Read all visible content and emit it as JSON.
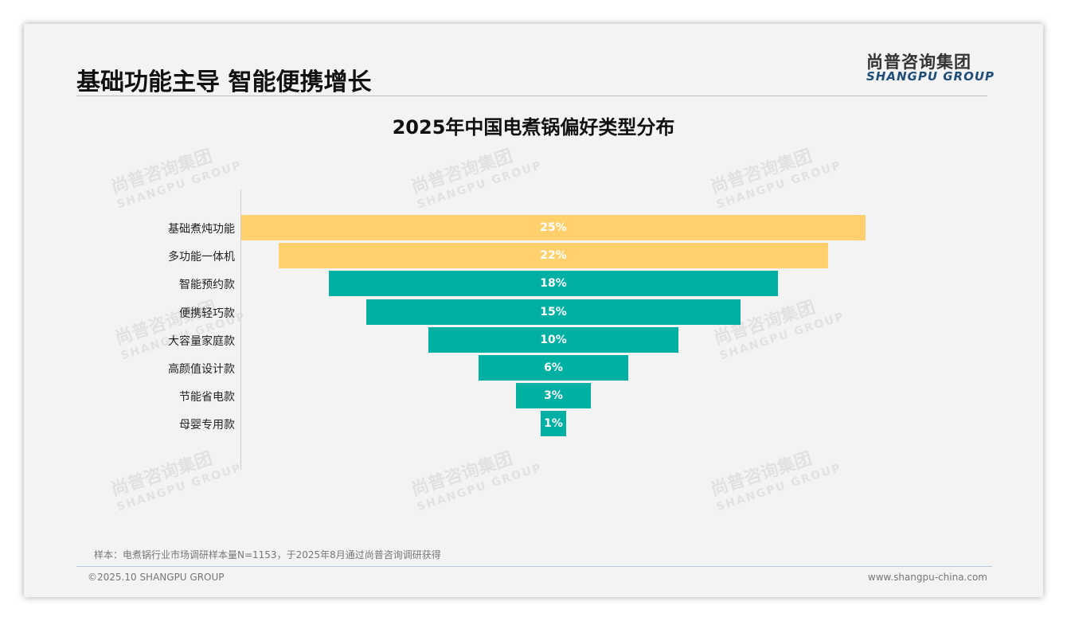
{
  "header": {
    "title": "基础功能主导 智能便携增长",
    "logo_cn": "尚普咨询集团",
    "logo_en": "SHANGPU GROUP"
  },
  "chart_data": {
    "type": "bar",
    "subtype": "funnel",
    "title": "2025年中国电煮锅偏好类型分布",
    "categories": [
      "基础煮炖功能",
      "多功能一体机",
      "智能预约款",
      "便携轻巧款",
      "大容量家庭款",
      "高颜值设计款",
      "节能省电款",
      "母婴专用款"
    ],
    "values": [
      25,
      22,
      18,
      15,
      10,
      6,
      3,
      1
    ],
    "labels": [
      "25%",
      "22%",
      "18%",
      "15%",
      "10%",
      "6%",
      "3%",
      "1%"
    ],
    "colors": [
      "#FFD06B",
      "#FFD06B",
      "#00B0A3",
      "#00B0A3",
      "#00B0A3",
      "#00B0A3",
      "#00B0A3",
      "#00B0A3"
    ],
    "xlim": [
      0,
      25
    ]
  },
  "footer": {
    "note": "样本：电煮锅行业市场调研样本量N=1153，于2025年8月通过尚普咨询调研获得",
    "copyright": "©2025.10 SHANGPU GROUP",
    "url": "www.shangpu-china.com"
  }
}
